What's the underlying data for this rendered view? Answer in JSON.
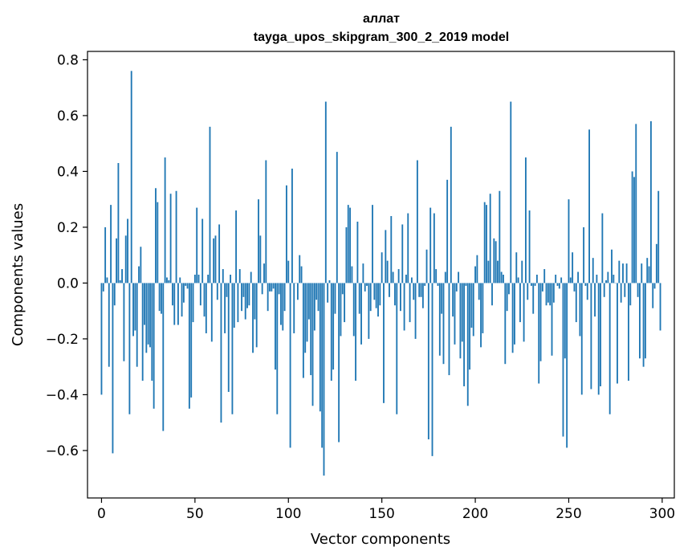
{
  "chart_data": {
    "type": "bar",
    "title": "аллат",
    "subtitle": "tayga_upos_skipgram_300_2_2019 model",
    "xlabel": "Vector components",
    "ylabel": "Components values",
    "xlim": [
      -7.5,
      306.5
    ],
    "ylim": [
      -0.77,
      0.83
    ],
    "xticks": [
      0,
      50,
      100,
      150,
      200,
      250,
      300
    ],
    "xtick_labels": [
      "0",
      "50",
      "100",
      "150",
      "200",
      "250",
      "300"
    ],
    "yticks": [
      -0.6,
      -0.4,
      -0.2,
      0.0,
      0.2,
      0.4,
      0.6,
      0.8
    ],
    "ytick_labels": [
      "−0.6",
      "−0.4",
      "−0.2",
      "0.0",
      "0.2",
      "0.4",
      "0.6",
      "0.8"
    ],
    "color": "#1f77b4",
    "values": [
      -0.4,
      -0.03,
      0.2,
      0.02,
      -0.3,
      0.28,
      -0.61,
      -0.08,
      0.16,
      0.43,
      0.01,
      0.05,
      -0.28,
      0.17,
      0.23,
      -0.47,
      0.76,
      -0.19,
      -0.17,
      -0.3,
      0.06,
      0.13,
      -0.35,
      -0.15,
      -0.25,
      -0.22,
      -0.23,
      -0.35,
      -0.45,
      0.34,
      0.29,
      -0.1,
      -0.11,
      -0.53,
      0.45,
      0.02,
      0.01,
      0.32,
      -0.08,
      -0.15,
      0.33,
      -0.15,
      0.02,
      -0.12,
      -0.07,
      -0.01,
      -0.02,
      -0.45,
      -0.41,
      -0.14,
      0.03,
      0.27,
      0.03,
      -0.08,
      0.23,
      -0.12,
      -0.18,
      0.03,
      0.56,
      -0.21,
      0.16,
      0.17,
      -0.06,
      0.21,
      -0.5,
      0.05,
      -0.18,
      -0.05,
      -0.39,
      0.03,
      -0.47,
      -0.16,
      0.26,
      -0.14,
      0.05,
      -0.1,
      -0.05,
      -0.13,
      -0.09,
      -0.08,
      0.04,
      -0.25,
      -0.13,
      -0.23,
      0.3,
      0.17,
      -0.04,
      0.07,
      0.44,
      -0.1,
      -0.03,
      -0.03,
      -0.02,
      -0.31,
      -0.47,
      -0.04,
      -0.15,
      -0.17,
      -0.1,
      0.35,
      0.08,
      -0.59,
      0.41,
      -0.18,
      0.0,
      -0.06,
      0.1,
      0.06,
      -0.34,
      -0.25,
      -0.21,
      -0.13,
      -0.33,
      -0.44,
      -0.17,
      -0.06,
      -0.1,
      -0.46,
      -0.59,
      -0.69,
      0.65,
      -0.07,
      0.01,
      -0.35,
      -0.31,
      -0.11,
      0.47,
      -0.57,
      -0.19,
      -0.04,
      -0.14,
      0.2,
      0.28,
      0.27,
      0.06,
      -0.19,
      -0.35,
      0.22,
      -0.11,
      -0.22,
      0.07,
      -0.03,
      -0.01,
      -0.2,
      -0.1,
      0.28,
      -0.06,
      -0.09,
      -0.12,
      -0.08,
      0.11,
      -0.43,
      0.19,
      0.08,
      -0.05,
      0.24,
      0.04,
      -0.08,
      -0.47,
      0.05,
      -0.1,
      0.21,
      -0.17,
      0.03,
      0.25,
      -0.14,
      0.02,
      -0.06,
      -0.2,
      0.44,
      -0.05,
      -0.05,
      -0.09,
      -0.01,
      0.12,
      -0.56,
      0.27,
      -0.62,
      0.25,
      0.05,
      -0.01,
      -0.26,
      -0.11,
      -0.29,
      0.04,
      0.37,
      -0.33,
      0.56,
      -0.12,
      -0.22,
      -0.03,
      0.04,
      -0.27,
      -0.21,
      -0.37,
      -0.01,
      -0.44,
      -0.31,
      -0.16,
      -0.19,
      0.06,
      0.1,
      -0.06,
      -0.23,
      -0.18,
      0.29,
      0.28,
      0.08,
      0.32,
      -0.08,
      0.16,
      0.15,
      0.08,
      0.33,
      0.04,
      0.03,
      -0.29,
      -0.1,
      -0.04,
      0.65,
      -0.25,
      -0.22,
      0.11,
      0.02,
      -0.14,
      0.08,
      -0.21,
      0.45,
      -0.06,
      0.26,
      -0.01,
      -0.11,
      -0.01,
      0.03,
      -0.36,
      -0.28,
      -0.03,
      0.05,
      -0.08,
      -0.07,
      -0.08,
      -0.26,
      -0.07,
      0.03,
      -0.01,
      -0.02,
      0.02,
      -0.55,
      -0.27,
      -0.59,
      0.3,
      0.02,
      0.11,
      -0.03,
      -0.14,
      0.04,
      -0.19,
      -0.4,
      0.2,
      -0.01,
      -0.06,
      0.55,
      -0.38,
      0.09,
      -0.12,
      0.03,
      -0.4,
      -0.37,
      0.25,
      -0.05,
      0.01,
      0.04,
      -0.47,
      0.12,
      0.03,
      0.0,
      -0.36,
      0.08,
      -0.07,
      0.07,
      -0.05,
      0.07,
      -0.35,
      -0.08,
      0.4,
      0.38,
      0.57,
      -0.05,
      -0.27,
      0.07,
      -0.3,
      -0.27,
      0.09,
      0.06,
      0.58,
      -0.09,
      -0.02,
      0.14,
      0.33,
      -0.17
    ]
  }
}
